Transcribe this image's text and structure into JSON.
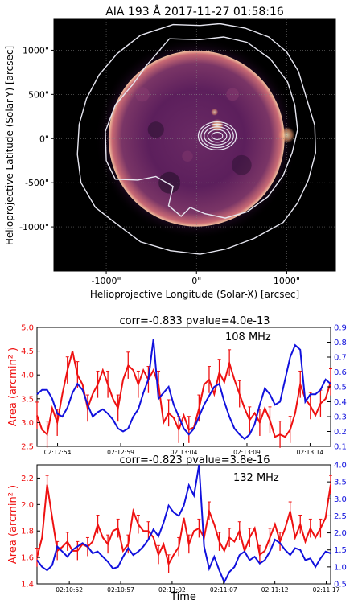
{
  "colors": {
    "red": "#ee1111",
    "blue": "#1111dd",
    "contour": "#e6e6f0"
  },
  "chart_data": [
    {
      "type": "heatmap",
      "title": "AIA 193 Å 2017-11-27 01:58:16",
      "xlabel": "Helioprojective Longitude (Solar-X) [arcsec]",
      "ylabel": "Helioprojective Latitude (Solar-Y) [arcsec]",
      "xlim": [
        -1580,
        1540
      ],
      "ylim": [
        -1500,
        1350
      ],
      "xticks": [
        {
          "v": -1000,
          "label": "-1000\""
        },
        {
          "v": 0,
          "label": "0\""
        },
        {
          "v": 1000,
          "label": "1000\""
        }
      ],
      "yticks": [
        {
          "v": 1000,
          "label": "1000\""
        },
        {
          "v": 500,
          "label": "500\""
        },
        {
          "v": 0,
          "label": "0\""
        },
        {
          "v": -500,
          "label": "-500\""
        },
        {
          "v": -1000,
          "label": "-1000\""
        }
      ],
      "grid": true,
      "sun_radius": 975,
      "compact_source": {
        "x": 230,
        "y": 30,
        "radii": [
          [
            60,
            40
          ],
          [
            105,
            70
          ],
          [
            145,
            100
          ],
          [
            180,
            130
          ],
          [
            210,
            155
          ]
        ]
      },
      "outer_contour": [
        [
          -260,
          1290
        ],
        [
          40,
          1280
        ],
        [
          260,
          1300
        ],
        [
          540,
          1250
        ],
        [
          800,
          1150
        ],
        [
          1000,
          980
        ],
        [
          1130,
          760
        ],
        [
          1230,
          420
        ],
        [
          1310,
          150
        ],
        [
          1320,
          -160
        ],
        [
          1240,
          -470
        ],
        [
          1120,
          -730
        ],
        [
          960,
          -950
        ],
        [
          640,
          -1130
        ],
        [
          330,
          -1250
        ],
        [
          40,
          -1310
        ],
        [
          -290,
          -1270
        ],
        [
          -620,
          -1170
        ],
        [
          -880,
          -970
        ],
        [
          -1120,
          -780
        ],
        [
          -1280,
          -500
        ],
        [
          -1320,
          -180
        ],
        [
          -1300,
          160
        ],
        [
          -1220,
          450
        ],
        [
          -1080,
          720
        ],
        [
          -880,
          960
        ],
        [
          -620,
          1170
        ]
      ],
      "inner_contour": [
        [
          -300,
          1130
        ],
        [
          40,
          1120
        ],
        [
          300,
          1150
        ],
        [
          560,
          1090
        ],
        [
          820,
          900
        ],
        [
          1010,
          640
        ],
        [
          1090,
          380
        ],
        [
          1120,
          100
        ],
        [
          1060,
          -160
        ],
        [
          960,
          -420
        ],
        [
          790,
          -660
        ],
        [
          560,
          -830
        ],
        [
          320,
          -900
        ],
        [
          90,
          -850
        ],
        [
          -70,
          -780
        ],
        [
          -170,
          -880
        ],
        [
          -310,
          -760
        ],
        [
          -260,
          -540
        ],
        [
          -450,
          -430
        ],
        [
          -650,
          -470
        ],
        [
          -900,
          -460
        ],
        [
          -1000,
          -250
        ],
        [
          -1010,
          80
        ],
        [
          -900,
          380
        ],
        [
          -700,
          620
        ],
        [
          -560,
          820
        ]
      ]
    },
    {
      "type": "line",
      "title": "corr=-0.833   pvalue=4.0e-13",
      "annotation": "108 MHz",
      "ylabel": "Area (arcmin² )",
      "ylim": [
        2.5,
        5.0
      ],
      "yticks": [
        "2.5",
        "3.0",
        "3.5",
        "4.0",
        "4.5",
        "5.0"
      ],
      "y2lim": [
        0.1,
        0.9
      ],
      "y2ticks": [
        "0.1",
        "0.2",
        "0.3",
        "0.4",
        "0.5",
        "0.6",
        "0.7",
        "0.8",
        "0.9"
      ],
      "xlim": [
        0,
        1
      ],
      "xticks": [
        {
          "v": 0.07,
          "label": "02:12:54"
        },
        {
          "v": 0.285,
          "label": "02:12:59"
        },
        {
          "v": 0.5,
          "label": "02:13:04"
        },
        {
          "v": 0.715,
          "label": "02:13:09"
        },
        {
          "v": 0.93,
          "label": "02:13:14"
        }
      ],
      "series": [
        {
          "color": "red",
          "axis": "left",
          "y": [
            3.15,
            2.85,
            2.75,
            3.3,
            3.0,
            3.6,
            4.1,
            4.5,
            4.0,
            3.8,
            3.3,
            3.6,
            3.8,
            4.1,
            3.8,
            3.5,
            3.3,
            3.9,
            4.2,
            4.1,
            3.8,
            4.1,
            3.9,
            4.1,
            3.8,
            3.0,
            3.2,
            3.1,
            2.85,
            3.15,
            2.85,
            2.9,
            3.3,
            3.8,
            3.9,
            3.6,
            4.05,
            3.85,
            4.25,
            3.9,
            3.6,
            3.3,
            3.05,
            3.2,
            3.0,
            3.3,
            3.05,
            2.7,
            2.75,
            2.7,
            2.85,
            3.2,
            3.8,
            3.5,
            3.35,
            3.15,
            3.4,
            3.5,
            3.85
          ],
          "err": 0.28
        },
        {
          "color": "blue",
          "axis": "right",
          "y": [
            0.45,
            0.48,
            0.48,
            0.42,
            0.32,
            0.3,
            0.36,
            0.46,
            0.52,
            0.48,
            0.38,
            0.3,
            0.33,
            0.35,
            0.32,
            0.28,
            0.22,
            0.2,
            0.22,
            0.3,
            0.35,
            0.46,
            0.55,
            0.82,
            0.42,
            0.46,
            0.5,
            0.38,
            0.3,
            0.22,
            0.18,
            0.22,
            0.3,
            0.38,
            0.44,
            0.5,
            0.52,
            0.4,
            0.3,
            0.22,
            0.18,
            0.15,
            0.18,
            0.25,
            0.38,
            0.49,
            0.45,
            0.38,
            0.4,
            0.55,
            0.7,
            0.78,
            0.75,
            0.4,
            0.45,
            0.45,
            0.48,
            0.55,
            0.52
          ]
        }
      ]
    },
    {
      "type": "line",
      "title": "corr=-0.823   pvalue=3.8e-16",
      "annotation": "132 MHz",
      "ylabel": "Area (arcmin² )",
      "xlabel": "Time",
      "ylim": [
        1.4,
        2.3
      ],
      "yticks": [
        "1.4",
        "1.6",
        "1.8",
        "2.0",
        "2.2"
      ],
      "y2lim": [
        0.5,
        4.0
      ],
      "y2ticks": [
        "0.5",
        "1.0",
        "1.5",
        "2.0",
        "2.5",
        "3.0",
        "3.5",
        "4.0"
      ],
      "xlim": [
        0,
        1
      ],
      "xticks": [
        {
          "v": 0.11,
          "label": "02:10:52"
        },
        {
          "v": 0.285,
          "label": "02:10:57"
        },
        {
          "v": 0.46,
          "label": "02:11:02"
        },
        {
          "v": 0.635,
          "label": "02:11:07"
        },
        {
          "v": 0.81,
          "label": "02:11:12"
        },
        {
          "v": 0.985,
          "label": "02:11:17"
        }
      ],
      "series": [
        {
          "color": "red",
          "axis": "left",
          "y": [
            1.6,
            1.75,
            2.15,
            1.9,
            1.65,
            1.68,
            1.72,
            1.65,
            1.65,
            1.7,
            1.68,
            1.72,
            1.85,
            1.75,
            1.7,
            1.8,
            1.82,
            1.65,
            1.7,
            1.95,
            1.85,
            1.8,
            1.8,
            1.75,
            1.62,
            1.7,
            1.55,
            1.62,
            1.68,
            1.9,
            1.7,
            1.8,
            1.82,
            1.75,
            1.95,
            1.85,
            1.72,
            1.65,
            1.75,
            1.72,
            1.8,
            1.65,
            1.75,
            1.82,
            1.62,
            1.65,
            1.75,
            1.85,
            1.72,
            1.82,
            1.95,
            1.75,
            1.85,
            1.72,
            1.82,
            1.75,
            1.82,
            1.9,
            2.15
          ],
          "err": 0.07
        },
        {
          "color": "blue",
          "axis": "right",
          "y": [
            1.2,
            1.0,
            0.9,
            1.05,
            1.6,
            1.45,
            1.3,
            1.5,
            1.6,
            1.7,
            1.6,
            1.4,
            1.45,
            1.3,
            1.15,
            0.95,
            1.0,
            1.3,
            1.55,
            1.35,
            1.45,
            1.6,
            1.8,
            2.1,
            1.9,
            2.3,
            2.8,
            2.6,
            2.5,
            2.8,
            3.4,
            3.1,
            4.0,
            1.6,
            0.95,
            1.3,
            0.9,
            0.55,
            0.85,
            1.0,
            1.35,
            1.45,
            1.2,
            1.3,
            1.1,
            1.2,
            1.45,
            1.8,
            1.7,
            1.5,
            1.35,
            1.55,
            1.5,
            1.2,
            1.25,
            1.0,
            1.25,
            1.45,
            1.4
          ]
        }
      ]
    }
  ]
}
